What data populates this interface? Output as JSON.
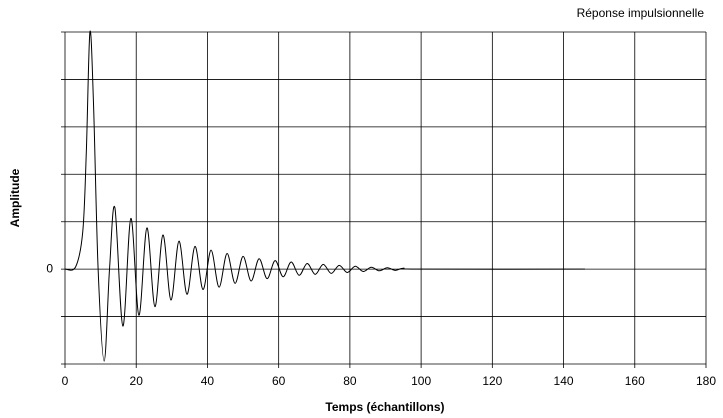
{
  "chart_data": {
    "type": "line",
    "title": "Réponse impulsionnelle",
    "xlabel": "Temps (échantillons)",
    "ylabel": "Amplitude",
    "xlim": [
      0,
      180
    ],
    "xticks": [
      0,
      20,
      40,
      60,
      80,
      100,
      120,
      140,
      160,
      180
    ],
    "ylim": [
      -2,
      5
    ],
    "yticks": [
      {
        "value": -2,
        "label": null
      },
      {
        "value": -1,
        "label": null
      },
      0,
      {
        "value": 1,
        "label": null
      },
      {
        "value": 2,
        "label": null
      },
      {
        "value": 3,
        "label": null
      },
      {
        "value": 4,
        "label": null
      },
      {
        "value": 5,
        "label": null
      }
    ],
    "grid": true,
    "color": "#000000",
    "x": [
      0,
      3,
      5,
      6,
      7,
      8,
      9.3,
      11,
      12.5,
      14,
      16.25,
      18.5,
      20.75,
      23,
      25.25,
      27.5,
      29.75,
      32,
      34.25,
      36.5,
      38.75,
      41,
      43.25,
      45.5,
      47.75,
      50,
      52.25,
      54.5,
      56.75,
      59,
      61.25,
      63.5,
      65.75,
      68,
      70.25,
      72.5,
      74.75,
      77,
      79.25,
      81.5,
      83.75,
      86,
      88.25,
      90.5,
      92.75,
      95,
      100,
      146
    ],
    "values": [
      0,
      0.05,
      0.8,
      2.5,
      5.0,
      3.5,
      0,
      -1.94,
      0,
      1.3,
      -1.2,
      1.07,
      -0.97,
      0.87,
      -0.79,
      0.72,
      -0.65,
      0.59,
      -0.53,
      0.48,
      -0.43,
      0.4,
      -0.38,
      0.33,
      -0.3,
      0.27,
      -0.25,
      0.22,
      -0.2,
      0.18,
      -0.16,
      0.15,
      -0.13,
      0.12,
      -0.11,
      0.1,
      -0.09,
      0.08,
      -0.07,
      0.06,
      -0.05,
      0.04,
      -0.035,
      0.03,
      -0.025,
      0.02,
      0,
      0
    ]
  }
}
